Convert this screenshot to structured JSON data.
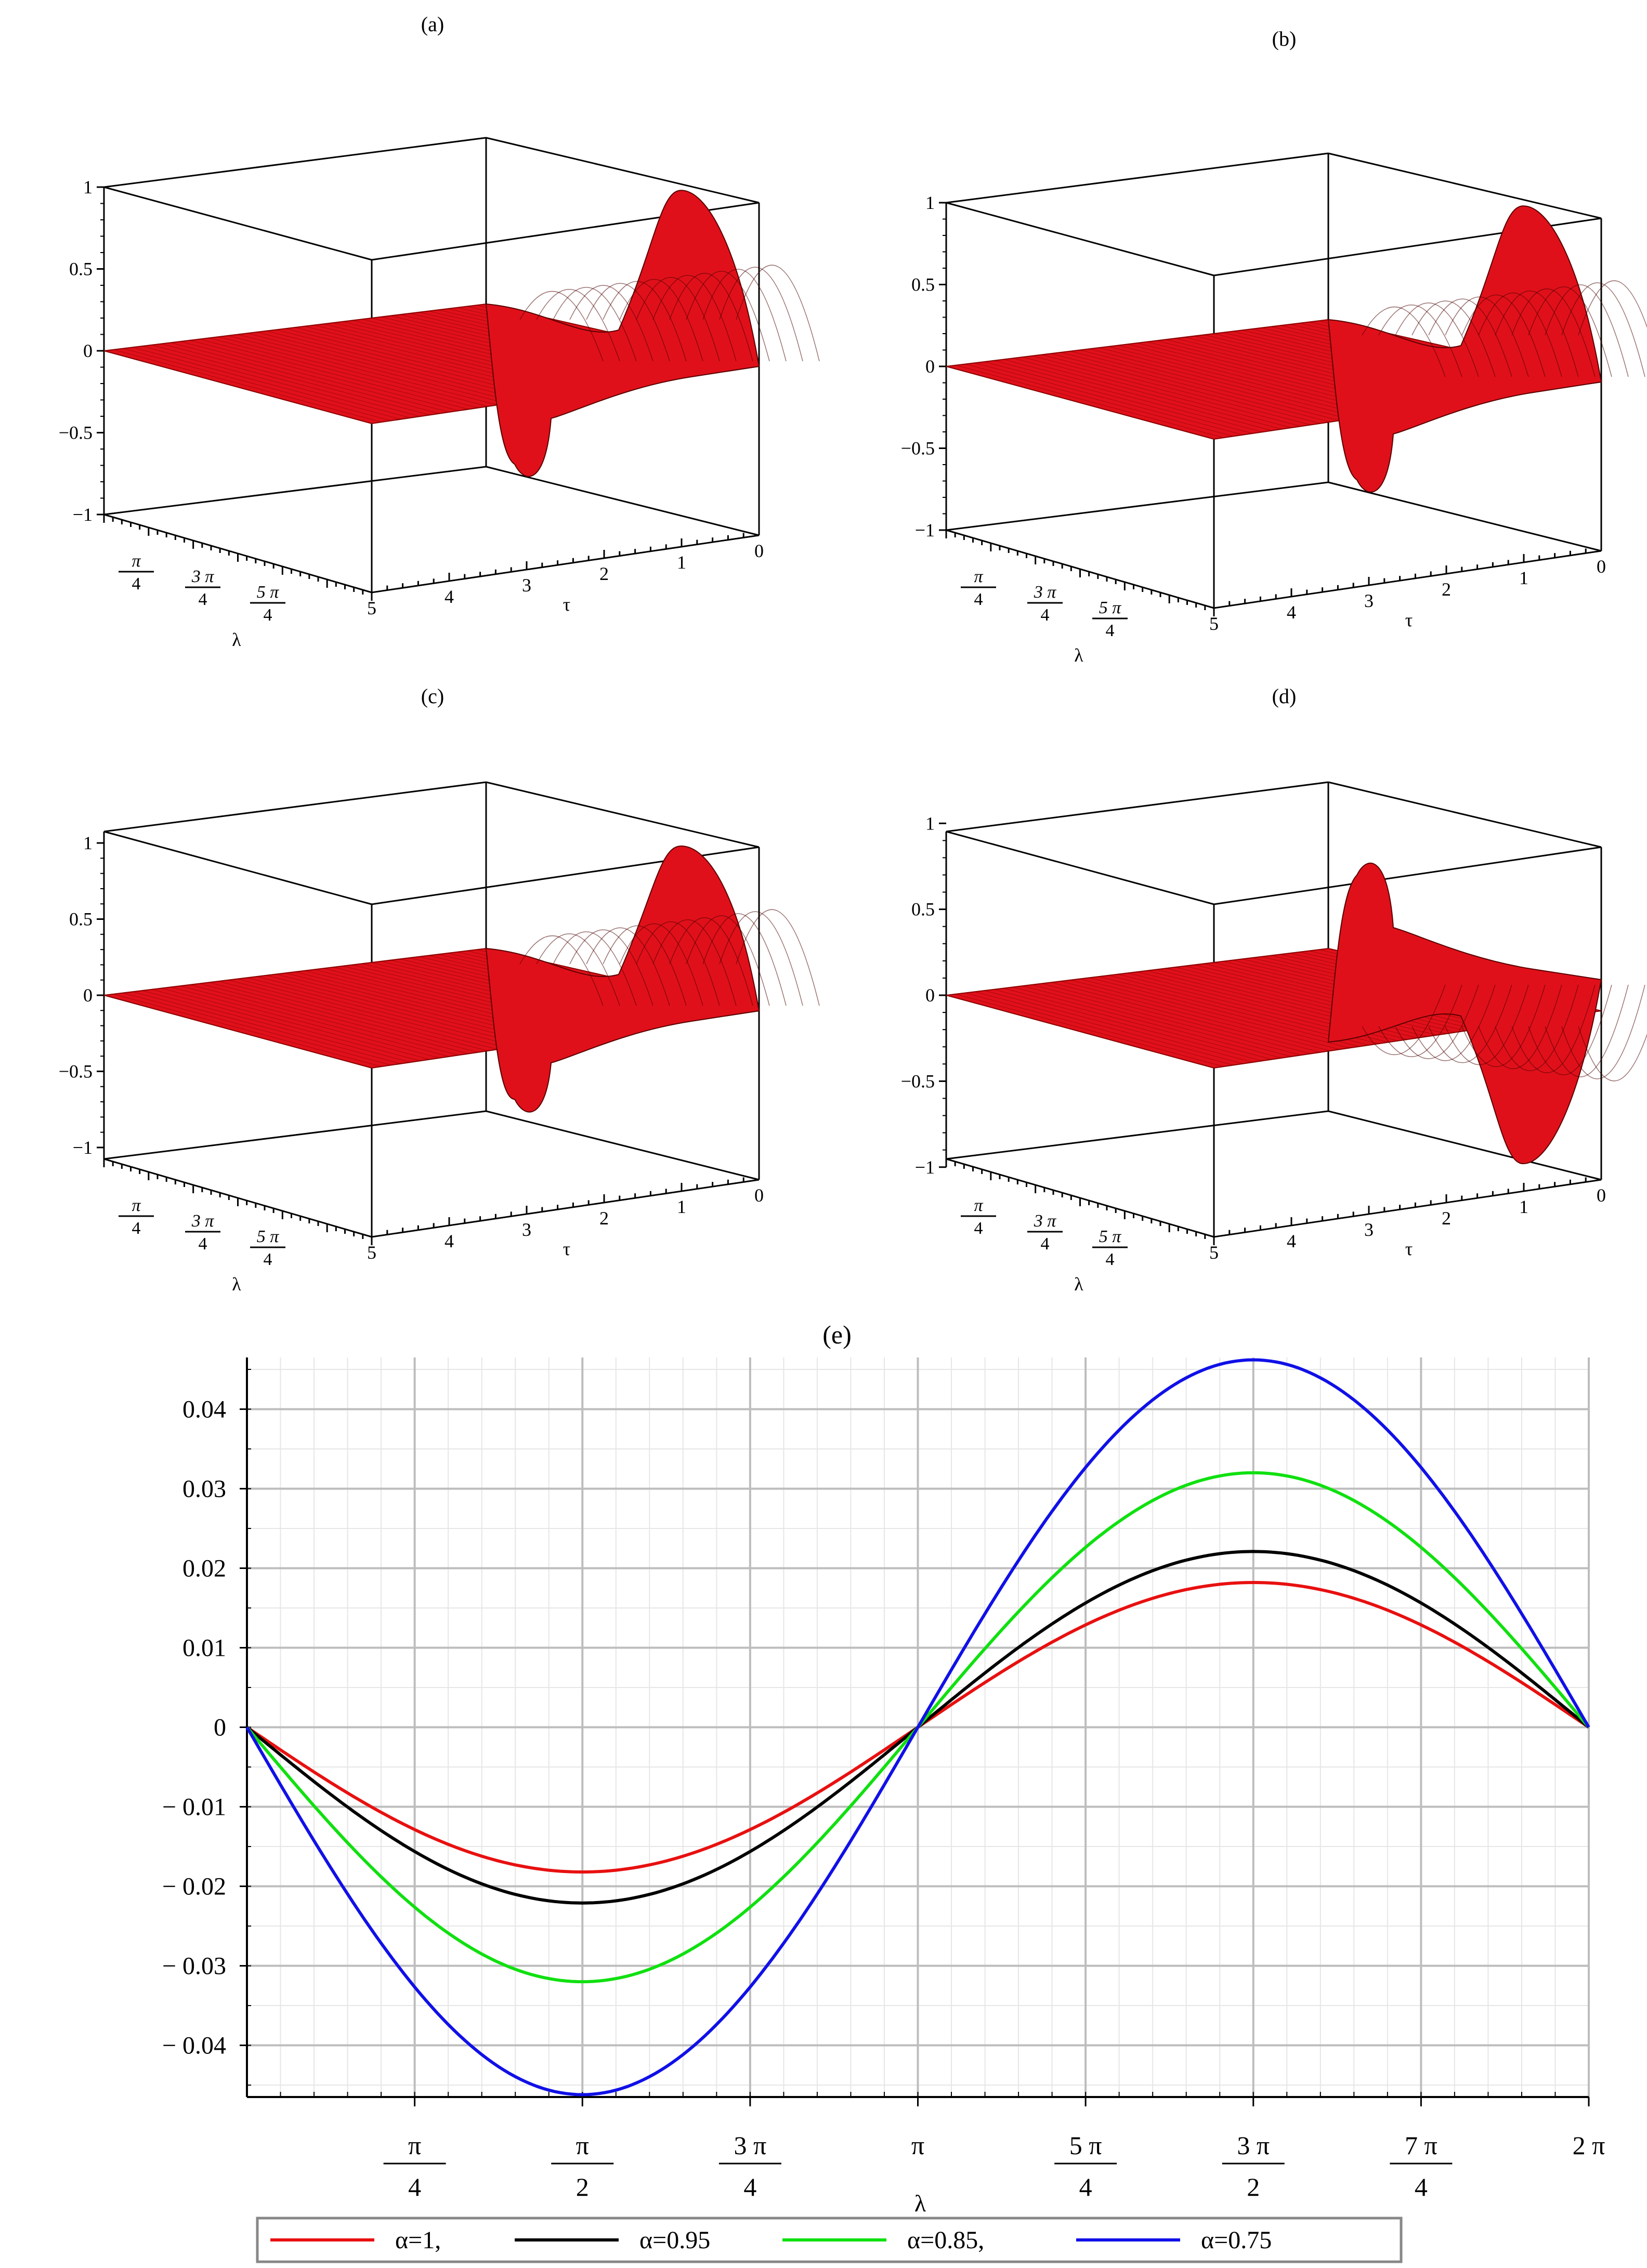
{
  "figure": {
    "panels": [
      {
        "label": "(a)",
        "surface_color": "#e0101a"
      },
      {
        "label": "(b)",
        "surface_color": "#e0101a"
      },
      {
        "label": "(c)",
        "surface_color": "#e0101a"
      },
      {
        "label": "(d)",
        "surface_color": "#e0101a"
      }
    ],
    "surface_axis": {
      "z_ticks": [
        "1",
        "0.5",
        "0",
        "−0.5",
        "−1"
      ],
      "z_ticks_c": [
        "1",
        "0.5",
        "0",
        "−0.5",
        "−1"
      ],
      "lambda_ticks": [
        [
          "π",
          "4"
        ],
        [
          "3 π",
          "4"
        ],
        [
          "5 π",
          "4"
        ]
      ],
      "tau_ticks": [
        "5",
        "4",
        "3",
        "2",
        "1",
        "0"
      ],
      "lambda_label": "λ",
      "tau_label": "τ"
    }
  },
  "chart_data": {
    "type": "line",
    "title": "(e)",
    "xlabel": "λ",
    "ylabel": "",
    "x_range": [
      0,
      6.2832
    ],
    "ylim": [
      -0.0465,
      0.0465
    ],
    "grid": true,
    "legend_position": "bottom",
    "x_ticks": [
      [
        "π",
        "4"
      ],
      [
        "π",
        "2"
      ],
      [
        "3 π",
        "4"
      ],
      [
        "π",
        ""
      ],
      [
        "5 π",
        "4"
      ],
      [
        "3 π",
        "2"
      ],
      [
        "7 π",
        "4"
      ],
      [
        "2 π",
        ""
      ]
    ],
    "y_ticks": [
      "0.04",
      "0.03",
      "0.02",
      "0.01",
      "0",
      "− 0.01",
      "− 0.02",
      "− 0.03",
      "− 0.04"
    ],
    "y_tick_values": [
      0.04,
      0.03,
      0.02,
      0.01,
      0,
      -0.01,
      -0.02,
      -0.03,
      -0.04
    ],
    "series": [
      {
        "name": "α=1,",
        "color": "#e81010",
        "amplitude": 0.0182
      },
      {
        "name": "α=0.95",
        "color": "#000000",
        "amplitude": 0.0221
      },
      {
        "name": "α=0.85,",
        "color": "#10e010",
        "amplitude": 0.032
      },
      {
        "name": "α=0.75",
        "color": "#1010e8",
        "amplitude": 0.0462
      }
    ]
  }
}
